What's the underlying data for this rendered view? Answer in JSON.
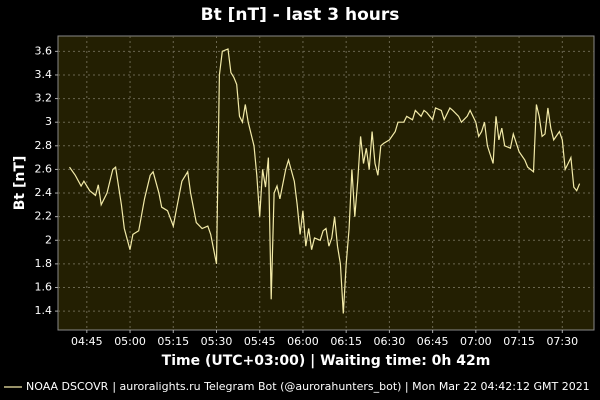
{
  "chart_data": {
    "type": "line",
    "title": "Bt [nT] - last 3 hours",
    "x_label": "Time (UTC+03:00) | Waiting time: 0h 42m",
    "y_label": "Bt [nT]",
    "footer": "| auroralights.ru Telegram Bot (@aurorahunters_bot) | Mon Mar 22 04:42:12 GMT 2021",
    "xlim": [
      "04:35",
      "07:41"
    ],
    "ylim": [
      1.24,
      3.73
    ],
    "xticks": [
      "04:45",
      "05:00",
      "05:15",
      "05:30",
      "05:45",
      "06:00",
      "06:15",
      "06:30",
      "06:45",
      "07:00",
      "07:15",
      "07:30"
    ],
    "yticks": [
      1.4,
      1.6,
      1.8,
      2.0,
      2.2,
      2.4,
      2.6,
      2.8,
      3.0,
      3.2,
      3.4,
      3.6
    ],
    "grid": true,
    "x": [
      "04:39",
      "04:41",
      "04:43",
      "04:44",
      "04:46",
      "04:48",
      "04:49",
      "04:50",
      "04:52",
      "04:54",
      "04:55",
      "04:57",
      "04:58",
      "05:00",
      "05:01",
      "05:03",
      "05:05",
      "05:07",
      "05:08",
      "05:10",
      "05:11",
      "05:13",
      "05:15",
      "05:16",
      "05:18",
      "05:20",
      "05:21",
      "05:23",
      "05:25",
      "05:27",
      "05:28",
      "05:30",
      "05:31",
      "05:32",
      "05:34",
      "05:35",
      "05:36",
      "05:37",
      "05:38",
      "05:39",
      "05:40",
      "05:41",
      "05:43",
      "05:44",
      "05:45",
      "05:46",
      "05:47",
      "05:48",
      "05:49",
      "05:50",
      "05:51",
      "05:52",
      "05:54",
      "05:55",
      "05:57",
      "05:58",
      "05:59",
      "06:00",
      "06:01",
      "06:02",
      "06:03",
      "06:04",
      "06:06",
      "06:07",
      "06:08",
      "06:09",
      "06:10",
      "06:11",
      "06:12",
      "06:13",
      "06:14",
      "06:15",
      "06:16",
      "06:17",
      "06:18",
      "06:19",
      "06:20",
      "06:21",
      "06:22",
      "06:23",
      "06:24",
      "06:25",
      "06:26",
      "06:27",
      "06:28",
      "06:30",
      "06:32",
      "06:33",
      "06:35",
      "06:36",
      "06:38",
      "06:39",
      "06:41",
      "06:42",
      "06:43",
      "06:45",
      "06:46",
      "06:48",
      "06:49",
      "06:51",
      "06:52",
      "06:54",
      "06:55",
      "06:57",
      "06:58",
      "07:00",
      "07:01",
      "07:02",
      "07:03",
      "07:04",
      "07:06",
      "07:07",
      "07:08",
      "07:09",
      "07:10",
      "07:12",
      "07:13",
      "07:15",
      "07:17",
      "07:18",
      "07:20",
      "07:21",
      "07:22",
      "07:23",
      "07:24",
      "07:25",
      "07:26",
      "07:27",
      "07:29",
      "07:30",
      "07:31",
      "07:32",
      "07:33",
      "07:34",
      "07:35",
      "07:36"
    ],
    "series": [
      {
        "name": "NOAA DSCOVR",
        "color": "#f2eaa8",
        "values": [
          2.62,
          2.55,
          2.46,
          2.5,
          2.42,
          2.38,
          2.47,
          2.3,
          2.4,
          2.6,
          2.62,
          2.3,
          2.1,
          1.92,
          2.05,
          2.08,
          2.35,
          2.55,
          2.58,
          2.4,
          2.28,
          2.25,
          2.12,
          2.25,
          2.5,
          2.58,
          2.4,
          2.15,
          2.1,
          2.12,
          2.05,
          1.8,
          3.4,
          3.6,
          3.62,
          3.42,
          3.38,
          3.32,
          3.05,
          3.0,
          3.15,
          3.0,
          2.8,
          2.55,
          2.2,
          2.6,
          2.45,
          2.7,
          1.5,
          2.4,
          2.46,
          2.35,
          2.6,
          2.68,
          2.5,
          2.3,
          2.05,
          2.25,
          1.95,
          2.1,
          1.92,
          2.02,
          2.0,
          2.08,
          2.1,
          1.95,
          2.02,
          2.2,
          1.95,
          1.8,
          1.38,
          1.8,
          2.1,
          2.6,
          2.2,
          2.5,
          2.88,
          2.65,
          2.78,
          2.6,
          2.92,
          2.65,
          2.55,
          2.8,
          2.82,
          2.85,
          2.92,
          3.0,
          3.0,
          3.05,
          3.02,
          3.1,
          3.05,
          3.1,
          3.08,
          3.02,
          3.12,
          3.1,
          3.02,
          3.12,
          3.1,
          3.05,
          3.0,
          3.05,
          3.1,
          3.0,
          2.88,
          2.92,
          3.0,
          2.8,
          2.65,
          3.05,
          2.85,
          2.95,
          2.8,
          2.78,
          2.9,
          2.75,
          2.68,
          2.62,
          2.58,
          3.15,
          3.05,
          2.88,
          2.9,
          3.12,
          2.95,
          2.85,
          2.92,
          2.85,
          2.6,
          2.65,
          2.7,
          2.45,
          2.42,
          2.48
        ]
      }
    ]
  }
}
